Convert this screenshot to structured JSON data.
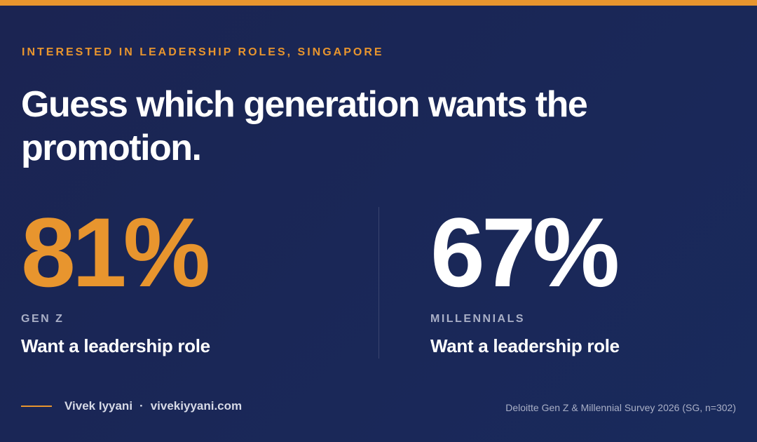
{
  "eyebrow": "INTERESTED IN LEADERSHIP ROLES, SINGAPORE",
  "headline": "Guess which generation wants the promotion.",
  "stats": [
    {
      "value": "81%",
      "group": "GEN Z",
      "caption": "Want a leadership role"
    },
    {
      "value": "67%",
      "group": "MILLENNIALS",
      "caption": "Want a leadership role"
    }
  ],
  "footer": {
    "author": "Vivek Iyyani",
    "separator": "·",
    "site": "vivekiyyani.com",
    "source": "Deloitte Gen Z & Millennial Survey 2026 (SG, n=302)"
  }
}
